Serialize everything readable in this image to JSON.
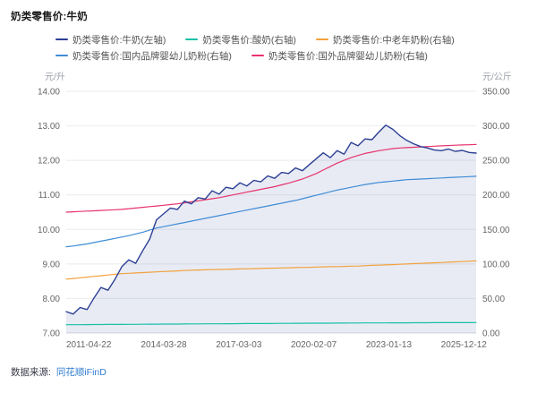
{
  "title": "奶类零售价:牛奶",
  "footer": {
    "label": "数据来源:",
    "source": "同花顺iFinD"
  },
  "chart_data": {
    "type": "line",
    "title": "奶类零售价:牛奶",
    "ylabel_left": "元/升",
    "ylabel_right": "元/公斤",
    "grid": "horizontal",
    "legend_position": "top-left",
    "left_axis": {
      "min": 7,
      "max": 14,
      "tick_step": 1,
      "tick_labels": [
        "14.00",
        "13.00",
        "12.00",
        "11.00",
        "10.00",
        "9.00",
        "8.00",
        "7.00"
      ]
    },
    "right_axis": {
      "min": 0,
      "max": 350,
      "tick_step": 50,
      "tick_labels": [
        "350.00",
        "300.00",
        "250.00",
        "200.00",
        "150.00",
        "100.00",
        "50.00",
        "0.00"
      ]
    },
    "x_tick_labels": [
      "2011-04-22",
      "2014-03-28",
      "2017-03-03",
      "2020-02-07",
      "2023-01-13",
      "2025-12-12"
    ],
    "legend_rows": [
      [
        0,
        1,
        2
      ],
      [
        3,
        4
      ]
    ],
    "series": [
      {
        "name": "奶类零售价:牛奶(左轴)",
        "axis": "left",
        "color": "#2c3f94",
        "area": true,
        "area_color": "rgba(80,100,170,0.13)",
        "values": [
          7.62,
          7.55,
          7.74,
          7.68,
          8.02,
          8.32,
          8.24,
          8.55,
          8.92,
          9.12,
          9.02,
          9.38,
          9.72,
          10.28,
          10.45,
          10.62,
          10.58,
          10.82,
          10.74,
          10.92,
          10.88,
          11.12,
          11.02,
          11.22,
          11.18,
          11.35,
          11.26,
          11.42,
          11.38,
          11.55,
          11.48,
          11.65,
          11.62,
          11.78,
          11.7,
          11.88,
          12.05,
          12.22,
          12.08,
          12.28,
          12.18,
          12.52,
          12.42,
          12.62,
          12.6,
          12.82,
          13.02,
          12.9,
          12.72,
          12.58,
          12.48,
          12.4,
          12.36,
          12.3,
          12.28,
          12.33,
          12.26,
          12.29,
          12.23,
          12.21
        ]
      },
      {
        "name": "奶类零售价:酸奶(右轴)",
        "axis": "right",
        "color": "#17c0a6",
        "area": false,
        "values": [
          12.0,
          12.1,
          12.1,
          12.2,
          12.3,
          12.3,
          12.4,
          12.4,
          12.5,
          12.6,
          12.6,
          12.7,
          12.8,
          12.8,
          12.9,
          13.0,
          13.0,
          13.1,
          13.2,
          13.2,
          13.3,
          13.4,
          13.4,
          13.5,
          13.5,
          13.6,
          13.7,
          13.7,
          13.8,
          13.8,
          13.9,
          14.0,
          14.0,
          14.1,
          14.1,
          14.2,
          14.2,
          14.3,
          14.3,
          14.4,
          14.4,
          14.5,
          14.5,
          14.6,
          14.6,
          14.7,
          14.7,
          14.8,
          14.8,
          14.8,
          14.9,
          14.9,
          14.9,
          15.0,
          15.0,
          15.0,
          15.1,
          15.1,
          15.1,
          15.2
        ]
      },
      {
        "name": "奶类零售价:中老年奶粉(右轴)",
        "axis": "right",
        "color": "#f2a13c",
        "area": false,
        "values": [
          78,
          79,
          80,
          81,
          82,
          83,
          84,
          85,
          86,
          86.5,
          87,
          87.5,
          88,
          88.5,
          89,
          89.5,
          90,
          90.5,
          91,
          91.2,
          91.5,
          91.8,
          92,
          92.2,
          92.5,
          92.8,
          93,
          93.2,
          93.5,
          93.8,
          94,
          94.2,
          94.5,
          94.8,
          95,
          95.2,
          95.5,
          95.8,
          96,
          96.2,
          96.5,
          96.8,
          97,
          97.5,
          98,
          98.3,
          98.6,
          99,
          99.5,
          100,
          100.4,
          100.8,
          101.2,
          101.6,
          102,
          102.5,
          103,
          103.5,
          104,
          104.5
        ]
      },
      {
        "name": "奶类零售价:国内品牌婴幼儿奶粉(右轴)",
        "axis": "right",
        "color": "#3f8cd6",
        "area": false,
        "values": [
          125,
          126,
          127.5,
          129,
          131,
          133,
          135,
          137,
          139,
          141,
          143.5,
          146,
          149,
          152,
          154,
          156,
          158,
          160,
          162,
          164,
          166,
          168,
          170,
          172,
          174,
          176,
          178,
          180,
          182,
          184,
          186,
          188,
          190,
          192,
          194.5,
          197,
          199.5,
          202,
          204.5,
          207,
          209,
          211,
          213,
          215,
          216.5,
          218,
          219,
          220,
          221,
          222,
          222.5,
          223,
          223.5,
          224,
          224.5,
          225,
          225.5,
          226,
          226.5,
          227
        ]
      },
      {
        "name": "奶类零售价:国外品牌婴幼儿奶粉(右轴)",
        "axis": "right",
        "color": "#e8336e",
        "area": false,
        "values": [
          175,
          175.5,
          176,
          176.5,
          177,
          177.5,
          178,
          178.5,
          179,
          180,
          181,
          182,
          183,
          184,
          185,
          186,
          187,
          188.5,
          190,
          191.5,
          193,
          194.5,
          196,
          198,
          200,
          202,
          204,
          206,
          208,
          210,
          212,
          214.5,
          217,
          220,
          223,
          227,
          231,
          236,
          241,
          246,
          250,
          254,
          257,
          260,
          262,
          264,
          265.5,
          267,
          268,
          268.5,
          269,
          269.5,
          270,
          270.5,
          271,
          271.5,
          272,
          272.3,
          272.6,
          273
        ]
      }
    ]
  }
}
